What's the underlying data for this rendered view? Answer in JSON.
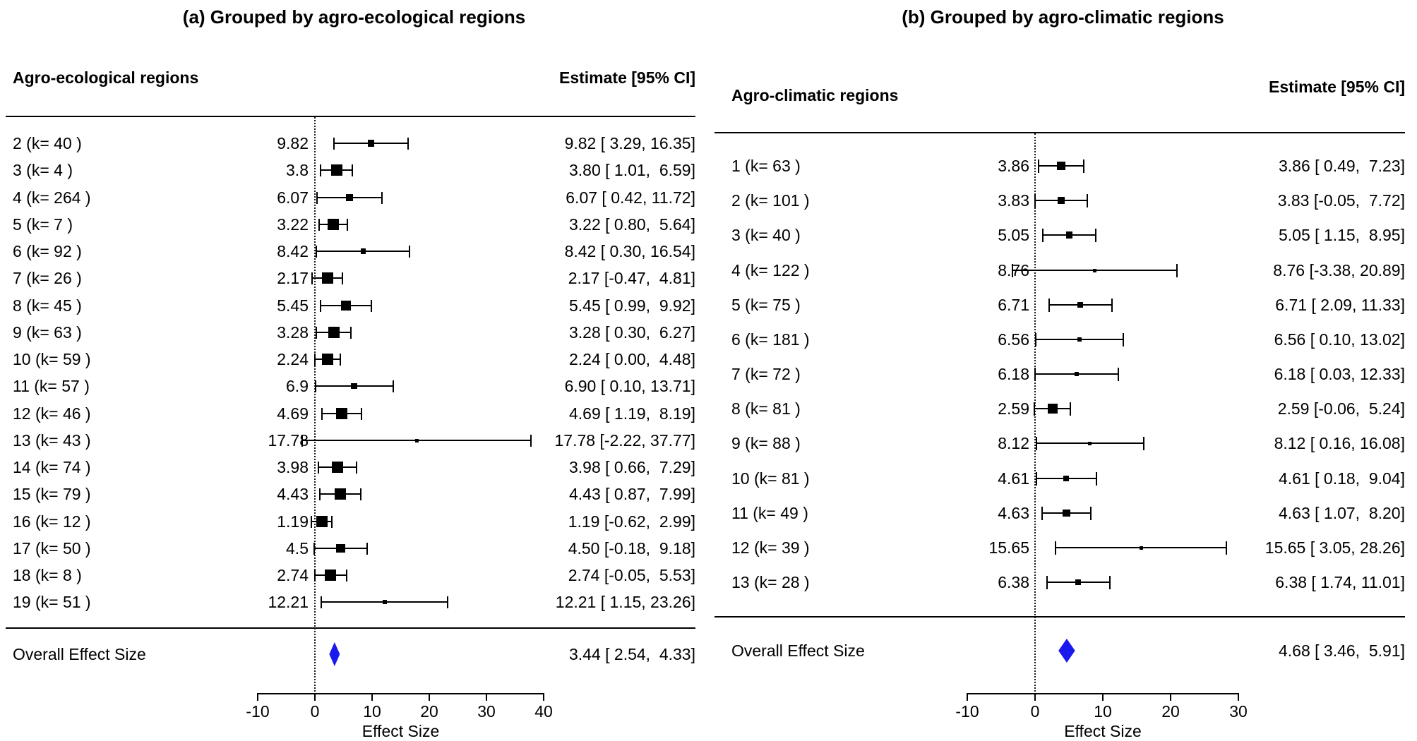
{
  "colors": {
    "diamond": "#1a1aee",
    "marker": "#000000",
    "text": "#000000"
  },
  "chart_data": [
    {
      "type": "forest",
      "title": "(a) Grouped by agro-ecological regions",
      "group_header": "Agro-ecological regions",
      "estimate_header": "Estimate [95% CI]",
      "overall_label": "Overall Effect Size",
      "xlabel": "Effect Size",
      "axis_ticks": [
        -10,
        0,
        10,
        20,
        30,
        40
      ],
      "xlim": [
        -10,
        40
      ],
      "rows": [
        {
          "label": "2 (k= 40 )",
          "value_label": "9.82",
          "est": 9.82,
          "lo": 3.29,
          "hi": 16.35,
          "ci_text": "9.82 [ 3.29, 16.35]"
        },
        {
          "label": "3 (k= 4 )",
          "value_label": "3.8",
          "est": 3.8,
          "lo": 1.01,
          "hi": 6.59,
          "ci_text": "3.80 [ 1.01,  6.59]"
        },
        {
          "label": "4 (k= 264 )",
          "value_label": "6.07",
          "est": 6.07,
          "lo": 0.42,
          "hi": 11.72,
          "ci_text": "6.07 [ 0.42, 11.72]"
        },
        {
          "label": "5 (k= 7 )",
          "value_label": "3.22",
          "est": 3.22,
          "lo": 0.8,
          "hi": 5.64,
          "ci_text": "3.22 [ 0.80,  5.64]"
        },
        {
          "label": "6 (k= 92 )",
          "value_label": "8.42",
          "est": 8.42,
          "lo": 0.3,
          "hi": 16.54,
          "ci_text": "8.42 [ 0.30, 16.54]"
        },
        {
          "label": "7 (k= 26 )",
          "value_label": "2.17",
          "est": 2.17,
          "lo": -0.47,
          "hi": 4.81,
          "ci_text": "2.17 [-0.47,  4.81]"
        },
        {
          "label": "8 (k= 45 )",
          "value_label": "5.45",
          "est": 5.45,
          "lo": 0.99,
          "hi": 9.92,
          "ci_text": "5.45 [ 0.99,  9.92]"
        },
        {
          "label": "9 (k= 63 )",
          "value_label": "3.28",
          "est": 3.28,
          "lo": 0.3,
          "hi": 6.27,
          "ci_text": "3.28 [ 0.30,  6.27]"
        },
        {
          "label": "10 (k= 59 )",
          "value_label": "2.24",
          "est": 2.24,
          "lo": 0.0,
          "hi": 4.48,
          "ci_text": "2.24 [ 0.00,  4.48]"
        },
        {
          "label": "11 (k= 57 )",
          "value_label": "6.9",
          "est": 6.9,
          "lo": 0.1,
          "hi": 13.71,
          "ci_text": "6.90 [ 0.10, 13.71]"
        },
        {
          "label": "12 (k= 46 )",
          "value_label": "4.69",
          "est": 4.69,
          "lo": 1.19,
          "hi": 8.19,
          "ci_text": "4.69 [ 1.19,  8.19]"
        },
        {
          "label": "13 (k= 43 )",
          "value_label": "17.78",
          "est": 17.78,
          "lo": -2.22,
          "hi": 37.77,
          "ci_text": "17.78 [-2.22, 37.77]"
        },
        {
          "label": "14 (k= 74 )",
          "value_label": "3.98",
          "est": 3.98,
          "lo": 0.66,
          "hi": 7.29,
          "ci_text": "3.98 [ 0.66,  7.29]"
        },
        {
          "label": "15 (k= 79 )",
          "value_label": "4.43",
          "est": 4.43,
          "lo": 0.87,
          "hi": 7.99,
          "ci_text": "4.43 [ 0.87,  7.99]"
        },
        {
          "label": "16 (k= 12 )",
          "value_label": "1.19",
          "est": 1.19,
          "lo": -0.62,
          "hi": 2.99,
          "ci_text": "1.19 [-0.62,  2.99]"
        },
        {
          "label": "17 (k= 50 )",
          "value_label": "4.5",
          "est": 4.5,
          "lo": -0.18,
          "hi": 9.18,
          "ci_text": "4.50 [-0.18,  9.18]"
        },
        {
          "label": "18 (k= 8 )",
          "value_label": "2.74",
          "est": 2.74,
          "lo": -0.05,
          "hi": 5.53,
          "ci_text": "2.74 [-0.05,  5.53]"
        },
        {
          "label": "19 (k= 51 )",
          "value_label": "12.21",
          "est": 12.21,
          "lo": 1.15,
          "hi": 23.26,
          "ci_text": "12.21 [ 1.15, 23.26]"
        }
      ],
      "overall": {
        "est": 3.44,
        "lo": 2.54,
        "hi": 4.33,
        "ci_text": "3.44 [ 2.54,  4.33]"
      }
    },
    {
      "type": "forest",
      "title": "(b) Grouped by agro-climatic regions",
      "group_header": "Agro-climatic regions",
      "estimate_header": "Estimate [95% CI]",
      "overall_label": "Overall Effect Size",
      "xlabel": "Effect Size",
      "axis_ticks": [
        -10,
        0,
        10,
        20,
        30
      ],
      "xlim": [
        -10,
        30
      ],
      "rows": [
        {
          "label": "1 (k= 63 )",
          "value_label": "3.86",
          "est": 3.86,
          "lo": 0.49,
          "hi": 7.23,
          "ci_text": "3.86 [ 0.49,  7.23]"
        },
        {
          "label": "2 (k= 101 )",
          "value_label": "3.83",
          "est": 3.83,
          "lo": -0.05,
          "hi": 7.72,
          "ci_text": "3.83 [-0.05,  7.72]"
        },
        {
          "label": "3 (k= 40 )",
          "value_label": "5.05",
          "est": 5.05,
          "lo": 1.15,
          "hi": 8.95,
          "ci_text": "5.05 [ 1.15,  8.95]"
        },
        {
          "label": "4 (k= 122 )",
          "value_label": "8.76",
          "est": 8.76,
          "lo": -3.38,
          "hi": 20.89,
          "ci_text": "8.76 [-3.38, 20.89]"
        },
        {
          "label": "5 (k= 75 )",
          "value_label": "6.71",
          "est": 6.71,
          "lo": 2.09,
          "hi": 11.33,
          "ci_text": "6.71 [ 2.09, 11.33]"
        },
        {
          "label": "6 (k= 181 )",
          "value_label": "6.56",
          "est": 6.56,
          "lo": 0.1,
          "hi": 13.02,
          "ci_text": "6.56 [ 0.10, 13.02]"
        },
        {
          "label": "7 (k= 72 )",
          "value_label": "6.18",
          "est": 6.18,
          "lo": 0.03,
          "hi": 12.33,
          "ci_text": "6.18 [ 0.03, 12.33]"
        },
        {
          "label": "8 (k= 81 )",
          "value_label": "2.59",
          "est": 2.59,
          "lo": -0.06,
          "hi": 5.24,
          "ci_text": "2.59 [-0.06,  5.24]"
        },
        {
          "label": "9 (k= 88 )",
          "value_label": "8.12",
          "est": 8.12,
          "lo": 0.16,
          "hi": 16.08,
          "ci_text": "8.12 [ 0.16, 16.08]"
        },
        {
          "label": "10 (k= 81 )",
          "value_label": "4.61",
          "est": 4.61,
          "lo": 0.18,
          "hi": 9.04,
          "ci_text": "4.61 [ 0.18,  9.04]"
        },
        {
          "label": "11 (k= 49 )",
          "value_label": "4.63",
          "est": 4.63,
          "lo": 1.07,
          "hi": 8.2,
          "ci_text": "4.63 [ 1.07,  8.20]"
        },
        {
          "label": "12 (k= 39 )",
          "value_label": "15.65",
          "est": 15.65,
          "lo": 3.05,
          "hi": 28.26,
          "ci_text": "15.65 [ 3.05, 28.26]"
        },
        {
          "label": "13 (k= 28 )",
          "value_label": "6.38",
          "est": 6.38,
          "lo": 1.74,
          "hi": 11.01,
          "ci_text": "6.38 [ 1.74, 11.01]"
        }
      ],
      "overall": {
        "est": 4.68,
        "lo": 3.46,
        "hi": 5.91,
        "ci_text": "4.68 [ 3.46,  5.91]"
      }
    }
  ]
}
